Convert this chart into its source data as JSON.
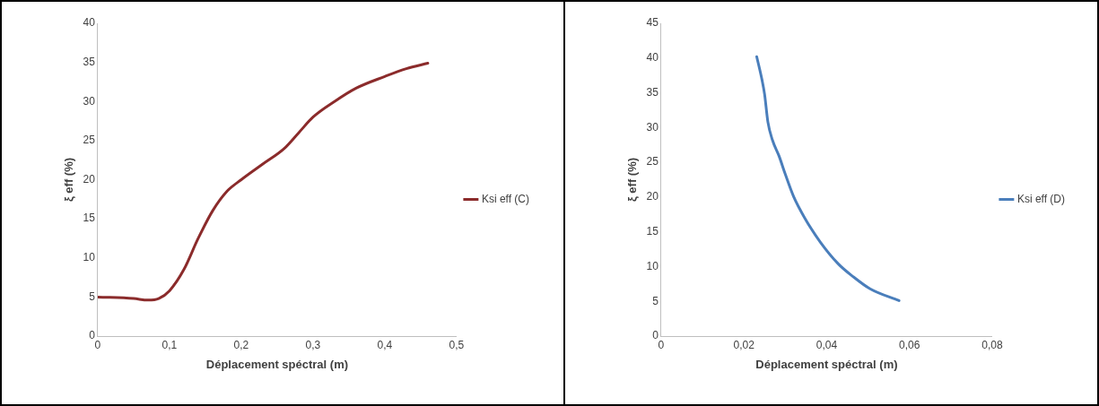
{
  "chart_data": [
    {
      "type": "line",
      "xlabel": "Déplacement spéctral (m)",
      "ylabel": "ξ eff (%)",
      "legend": "right",
      "grid": false,
      "marker": "none",
      "line_style": "solid",
      "xlim": [
        0,
        0.5
      ],
      "xticks": [
        0,
        {
          "value": 0.1,
          "label": "0,1"
        },
        {
          "value": 0.2,
          "label": "0,2"
        },
        {
          "value": 0.3,
          "label": "0,3"
        },
        {
          "value": 0.4,
          "label": "0,4"
        },
        {
          "value": 0.5,
          "label": "0,5"
        }
      ],
      "ylim": [
        0,
        40
      ],
      "yticks": [
        0,
        5,
        10,
        15,
        20,
        25,
        30,
        35,
        40
      ],
      "series": [
        {
          "name": "Ksi eff (C)",
          "color": "#8b2b2b",
          "x": [
            0,
            0.05,
            0.07,
            0.085,
            0.1,
            0.12,
            0.14,
            0.16,
            0.18,
            0.2,
            0.23,
            0.26,
            0.28,
            0.3,
            0.33,
            0.36,
            0.4,
            0.43,
            0.46
          ],
          "values": [
            5,
            4.8,
            4.6,
            4.8,
            5.8,
            8.5,
            12.5,
            16,
            18.5,
            20,
            22,
            24,
            26,
            28,
            30,
            31.7,
            33.2,
            34.2,
            34.9
          ]
        }
      ]
    },
    {
      "type": "line",
      "xlabel": "Déplacement spéctral (m)",
      "ylabel": "ξ eff (%)",
      "legend": "right",
      "grid": false,
      "marker": "none",
      "line_style": "solid",
      "xlim": [
        0,
        0.08
      ],
      "xticks": [
        0,
        {
          "value": 0.02,
          "label": "0,02"
        },
        {
          "value": 0.04,
          "label": "0,04"
        },
        {
          "value": 0.06,
          "label": "0,06"
        },
        {
          "value": 0.08,
          "label": "0,08"
        }
      ],
      "ylim": [
        0,
        45
      ],
      "yticks": [
        0,
        5,
        10,
        15,
        20,
        25,
        30,
        35,
        40,
        45
      ],
      "series": [
        {
          "name": "Ksi eff (D)",
          "color": "#4a7ebb",
          "x": [
            0.0231,
            0.0244,
            0.025,
            0.0258,
            0.0269,
            0.0285,
            0.03,
            0.032,
            0.0347,
            0.0385,
            0.0428,
            0.0463,
            0.0505,
            0.0575
          ],
          "values": [
            40.2,
            36.8,
            34.8,
            30.8,
            28.2,
            25.9,
            23.3,
            20.1,
            17,
            13.5,
            10.4,
            8.6,
            6.8,
            5.1
          ]
        }
      ]
    }
  ]
}
